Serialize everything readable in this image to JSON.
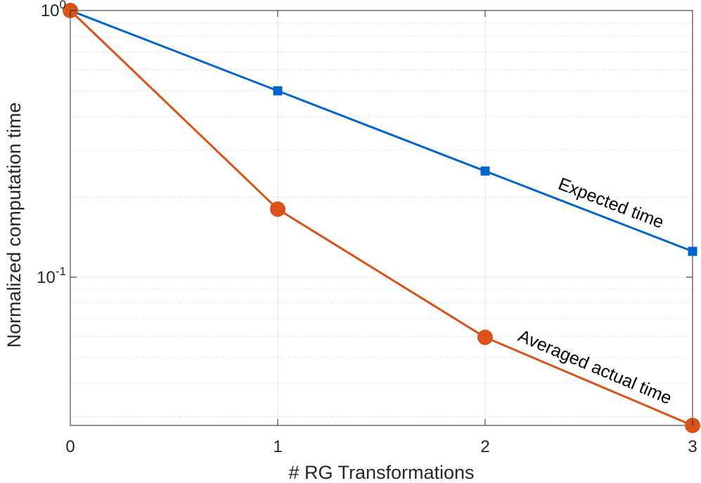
{
  "chart_data": {
    "type": "line",
    "xlabel": "# RG Transformations",
    "ylabel": "Normalized computation time",
    "x": [
      0,
      1,
      2,
      3
    ],
    "xlim": [
      0,
      3
    ],
    "ylim": [
      0.0278,
      1.0
    ],
    "yscale": "log",
    "grid": true,
    "xticks": [
      "0",
      "1",
      "2",
      "3"
    ],
    "yticks": [
      {
        "value": 1,
        "base": "10",
        "exp": "0"
      },
      {
        "value": 0.1,
        "base": "10",
        "exp": "-1"
      }
    ],
    "series": [
      {
        "name": "Expected time",
        "values": [
          1.0,
          0.5,
          0.25,
          0.125
        ],
        "color": "#0066CC",
        "marker": "square"
      },
      {
        "name": "Averaged actual time",
        "values": [
          1.0,
          0.18,
          0.0595,
          0.0278
        ],
        "color": "#D95319",
        "marker": "circle"
      }
    ]
  }
}
